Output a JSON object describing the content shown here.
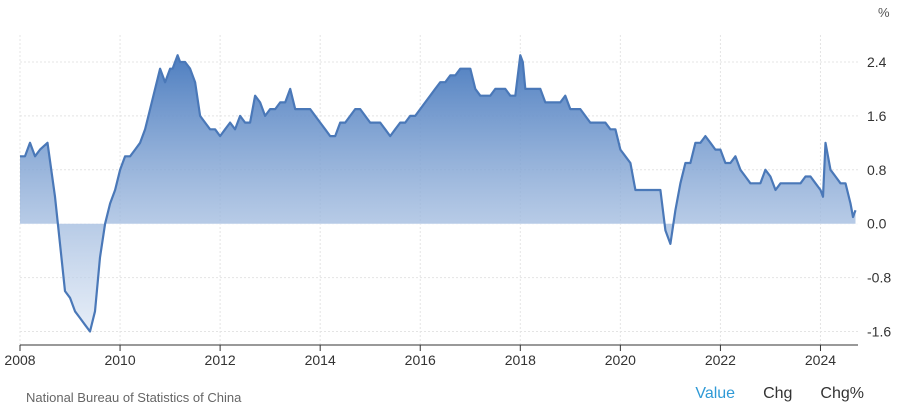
{
  "chart_data": {
    "type": "area",
    "unit": "%",
    "ylim": [
      -1.8,
      2.8
    ],
    "yticks": [
      "2.4",
      "1.6",
      "0.8",
      "0.0",
      "-0.8",
      "-1.6"
    ],
    "yticks_values": [
      2.4,
      1.6,
      0.8,
      0.0,
      -0.8,
      -1.6
    ],
    "xlim": [
      2008.0,
      2024.75
    ],
    "xticks": [
      "2008",
      "2010",
      "2012",
      "2014",
      "2016",
      "2018",
      "2020",
      "2022",
      "2024"
    ],
    "xticks_values": [
      2008,
      2010,
      2012,
      2014,
      2016,
      2018,
      2020,
      2022,
      2024
    ],
    "grid": true,
    "line_color": "#4a78b8",
    "fill_top_color": "#4e7ec0",
    "fill_bottom_color": "#dde7f5",
    "x": [
      2008.0,
      2008.1,
      2008.2,
      2008.3,
      2008.4,
      2008.55,
      2008.7,
      2008.8,
      2008.9,
      2009.0,
      2009.1,
      2009.2,
      2009.3,
      2009.4,
      2009.5,
      2009.6,
      2009.7,
      2009.8,
      2009.9,
      2010.0,
      2010.1,
      2010.2,
      2010.3,
      2010.4,
      2010.5,
      2010.6,
      2010.7,
      2010.8,
      2010.9,
      2011.0,
      2011.05,
      2011.1,
      2011.15,
      2011.2,
      2011.3,
      2011.4,
      2011.5,
      2011.6,
      2011.7,
      2011.8,
      2011.9,
      2012.0,
      2012.1,
      2012.2,
      2012.3,
      2012.4,
      2012.5,
      2012.6,
      2012.7,
      2012.8,
      2012.9,
      2013.0,
      2013.1,
      2013.2,
      2013.3,
      2013.4,
      2013.5,
      2013.6,
      2013.7,
      2013.8,
      2013.9,
      2014.0,
      2014.1,
      2014.2,
      2014.3,
      2014.4,
      2014.5,
      2014.6,
      2014.7,
      2014.8,
      2014.9,
      2015.0,
      2015.1,
      2015.2,
      2015.3,
      2015.4,
      2015.5,
      2015.6,
      2015.7,
      2015.8,
      2015.9,
      2016.0,
      2016.1,
      2016.2,
      2016.3,
      2016.4,
      2016.5,
      2016.6,
      2016.7,
      2016.8,
      2016.9,
      2017.0,
      2017.1,
      2017.2,
      2017.3,
      2017.4,
      2017.5,
      2017.6,
      2017.7,
      2017.8,
      2017.9,
      2018.0,
      2018.05,
      2018.1,
      2018.2,
      2018.3,
      2018.4,
      2018.5,
      2018.6,
      2018.7,
      2018.8,
      2018.9,
      2019.0,
      2019.1,
      2019.2,
      2019.3,
      2019.4,
      2019.5,
      2019.6,
      2019.7,
      2019.8,
      2019.9,
      2020.0,
      2020.1,
      2020.2,
      2020.3,
      2020.4,
      2020.5,
      2020.6,
      2020.7,
      2020.8,
      2020.9,
      2021.0,
      2021.1,
      2021.2,
      2021.3,
      2021.4,
      2021.5,
      2021.6,
      2021.7,
      2021.8,
      2021.9,
      2022.0,
      2022.1,
      2022.2,
      2022.3,
      2022.4,
      2022.5,
      2022.6,
      2022.7,
      2022.8,
      2022.9,
      2023.0,
      2023.1,
      2023.2,
      2023.3,
      2023.4,
      2023.5,
      2023.6,
      2023.7,
      2023.8,
      2023.9,
      2024.0,
      2024.05,
      2024.1,
      2024.2,
      2024.3,
      2024.4,
      2024.5,
      2024.6,
      2024.65,
      2024.7
    ],
    "values": [
      1.0,
      1.0,
      1.2,
      1.0,
      1.1,
      1.2,
      0.4,
      -0.3,
      -1.0,
      -1.1,
      -1.3,
      -1.4,
      -1.5,
      -1.6,
      -1.3,
      -0.5,
      0.0,
      0.3,
      0.5,
      0.8,
      1.0,
      1.0,
      1.1,
      1.2,
      1.4,
      1.7,
      2.0,
      2.3,
      2.1,
      2.3,
      2.3,
      2.4,
      2.5,
      2.4,
      2.4,
      2.3,
      2.1,
      1.6,
      1.5,
      1.4,
      1.4,
      1.3,
      1.4,
      1.5,
      1.4,
      1.6,
      1.5,
      1.5,
      1.9,
      1.8,
      1.6,
      1.7,
      1.7,
      1.8,
      1.8,
      2.0,
      1.7,
      1.7,
      1.7,
      1.7,
      1.6,
      1.5,
      1.4,
      1.3,
      1.3,
      1.5,
      1.5,
      1.6,
      1.7,
      1.7,
      1.6,
      1.5,
      1.5,
      1.5,
      1.4,
      1.3,
      1.4,
      1.5,
      1.5,
      1.6,
      1.6,
      1.7,
      1.8,
      1.9,
      2.0,
      2.1,
      2.1,
      2.2,
      2.2,
      2.3,
      2.3,
      2.3,
      2.0,
      1.9,
      1.9,
      1.9,
      2.0,
      2.0,
      2.0,
      1.9,
      1.9,
      2.5,
      2.4,
      2.0,
      2.0,
      2.0,
      2.0,
      1.8,
      1.8,
      1.8,
      1.8,
      1.9,
      1.7,
      1.7,
      1.7,
      1.6,
      1.5,
      1.5,
      1.5,
      1.5,
      1.4,
      1.4,
      1.1,
      1.0,
      0.9,
      0.5,
      0.5,
      0.5,
      0.5,
      0.5,
      0.5,
      -0.1,
      -0.3,
      0.2,
      0.6,
      0.9,
      0.9,
      1.2,
      1.2,
      1.3,
      1.2,
      1.1,
      1.1,
      0.9,
      0.9,
      1.0,
      0.8,
      0.7,
      0.6,
      0.6,
      0.6,
      0.8,
      0.7,
      0.5,
      0.6,
      0.6,
      0.6,
      0.6,
      0.6,
      0.7,
      0.7,
      0.6,
      0.5,
      0.4,
      1.2,
      0.8,
      0.7,
      0.6,
      0.6,
      0.3,
      0.1,
      0.2
    ]
  },
  "source": "National Bureau of Statistics of China",
  "tabs": [
    {
      "label": "Value",
      "active": true
    },
    {
      "label": "Chg",
      "active": false
    },
    {
      "label": "Chg%",
      "active": false
    }
  ]
}
